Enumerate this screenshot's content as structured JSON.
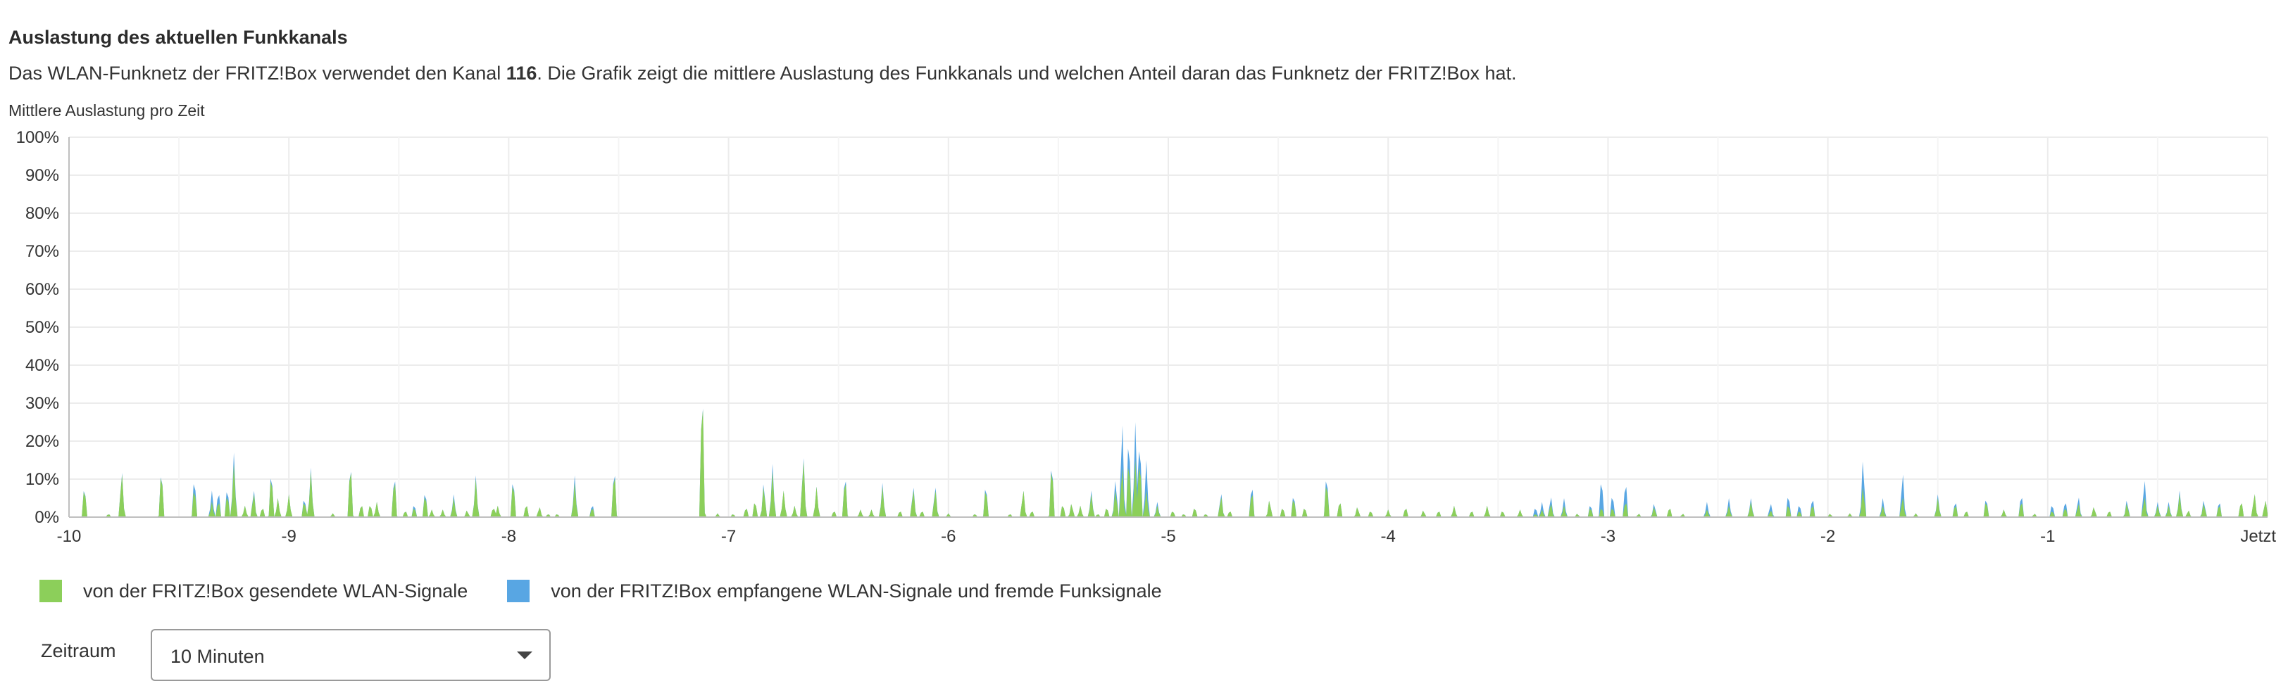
{
  "heading": "Auslastung des aktuellen Funkkanals",
  "description": {
    "before": "Das WLAN-Funknetz der FRITZ!Box verwendet den Kanal ",
    "channel": "116",
    "after": ". Die Grafik zeigt die mittlere Auslastung des Funkkanals und welchen Anteil daran das Funknetz der FRITZ!Box hat."
  },
  "legend": {
    "green_label": "von der FRITZ!Box gesendete WLAN-Signale",
    "blue_label": "von der FRITZ!Box empfangene WLAN-Signale und fremde Funksignale"
  },
  "colors": {
    "green": "#8ccf5a",
    "blue": "#58a6e3",
    "grid": "#ececec",
    "axis": "#bfbfbf"
  },
  "zeitraum": {
    "label": "Zeitraum",
    "value": "10 Minuten"
  },
  "chart_data": {
    "type": "area",
    "title": "Mittlere Auslastung pro Zeit",
    "xlim": [
      -10,
      0
    ],
    "ylim": [
      0,
      100
    ],
    "x_ticks": [
      {
        "value": -10,
        "label": "-10"
      },
      {
        "value": -9,
        "label": "-9"
      },
      {
        "value": -8,
        "label": "-8"
      },
      {
        "value": -7,
        "label": "-7"
      },
      {
        "value": -6,
        "label": "-6"
      },
      {
        "value": -5,
        "label": "-5"
      },
      {
        "value": -4,
        "label": "-4"
      },
      {
        "value": -3,
        "label": "-3"
      },
      {
        "value": -2,
        "label": "-2"
      },
      {
        "value": -1,
        "label": "-1"
      },
      {
        "value": 0,
        "label": "Jetzt"
      }
    ],
    "y_ticks": [
      {
        "value": 0,
        "label": "0%"
      },
      {
        "value": 10,
        "label": "10%"
      },
      {
        "value": 20,
        "label": "20%"
      },
      {
        "value": 30,
        "label": "30%"
      },
      {
        "value": 40,
        "label": "40%"
      },
      {
        "value": 50,
        "label": "50%"
      },
      {
        "value": 60,
        "label": "60%"
      },
      {
        "value": 70,
        "label": "70%"
      },
      {
        "value": 80,
        "label": "80%"
      },
      {
        "value": 90,
        "label": "90%"
      },
      {
        "value": 100,
        "label": "100%"
      }
    ],
    "grid": true,
    "stacked": true,
    "series": [
      {
        "name": "von der FRITZ!Box gesendete WLAN-Signale",
        "color": "#8ccf5a",
        "spikes": [
          [
            -9.93,
            9
          ],
          [
            -9.82,
            1
          ],
          [
            -9.76,
            13
          ],
          [
            -9.58,
            14
          ],
          [
            -9.43,
            9
          ],
          [
            -9.35,
            4
          ],
          [
            -9.32,
            5
          ],
          [
            -9.28,
            7
          ],
          [
            -9.25,
            14
          ],
          [
            -9.2,
            3
          ],
          [
            -9.16,
            7
          ],
          [
            -9.12,
            3
          ],
          [
            -9.08,
            13
          ],
          [
            -9.05,
            5
          ],
          [
            -9.0,
            6
          ],
          [
            -8.93,
            5
          ],
          [
            -8.92,
            1
          ],
          [
            -8.9,
            12
          ],
          [
            -8.8,
            1
          ],
          [
            -8.72,
            16
          ],
          [
            -8.67,
            4
          ],
          [
            -8.63,
            4
          ],
          [
            -8.6,
            4
          ],
          [
            -8.52,
            12
          ],
          [
            -8.47,
            2
          ],
          [
            -8.43,
            3
          ],
          [
            -8.38,
            7
          ],
          [
            -8.35,
            2
          ],
          [
            -8.3,
            2
          ],
          [
            -8.25,
            5
          ],
          [
            -8.19,
            2
          ],
          [
            -8.15,
            10
          ],
          [
            -8.07,
            3
          ],
          [
            -8.05,
            3
          ],
          [
            -7.98,
            11
          ],
          [
            -7.92,
            4
          ],
          [
            -7.86,
            3
          ],
          [
            -7.82,
            1
          ],
          [
            -7.78,
            1
          ],
          [
            -7.7,
            9
          ],
          [
            -7.62,
            3
          ],
          [
            -7.52,
            14
          ],
          [
            -7.12,
            39
          ],
          [
            -7.05,
            1
          ],
          [
            -6.98,
            1
          ],
          [
            -6.92,
            3
          ],
          [
            -6.88,
            5
          ],
          [
            -6.84,
            9
          ],
          [
            -6.8,
            12
          ],
          [
            -6.75,
            7
          ],
          [
            -6.7,
            3
          ],
          [
            -6.66,
            17
          ],
          [
            -6.6,
            8
          ],
          [
            -6.52,
            2
          ],
          [
            -6.47,
            12
          ],
          [
            -6.4,
            2
          ],
          [
            -6.35,
            2
          ],
          [
            -6.3,
            8
          ],
          [
            -6.22,
            2
          ],
          [
            -6.16,
            8
          ],
          [
            -6.12,
            2
          ],
          [
            -6.06,
            8
          ],
          [
            -6.0,
            1
          ],
          [
            -5.88,
            1
          ],
          [
            -5.83,
            9
          ],
          [
            -5.72,
            1
          ],
          [
            -5.66,
            8
          ],
          [
            -5.62,
            2
          ],
          [
            -5.53,
            16
          ],
          [
            -5.48,
            4
          ],
          [
            -5.44,
            4
          ],
          [
            -5.4,
            3
          ],
          [
            -5.35,
            6
          ],
          [
            -5.32,
            1
          ],
          [
            -5.28,
            3
          ],
          [
            -5.24,
            8
          ],
          [
            -5.21,
            15
          ],
          [
            -5.18,
            18
          ],
          [
            -5.15,
            15
          ],
          [
            -5.13,
            18
          ],
          [
            -5.1,
            7
          ],
          [
            -5.05,
            3
          ],
          [
            -4.98,
            2
          ],
          [
            -4.93,
            1
          ],
          [
            -4.88,
            3
          ],
          [
            -4.83,
            1
          ],
          [
            -4.76,
            6
          ],
          [
            -4.72,
            2
          ],
          [
            -4.62,
            8
          ],
          [
            -4.54,
            5
          ],
          [
            -4.48,
            3
          ],
          [
            -4.43,
            6
          ],
          [
            -4.38,
            3
          ],
          [
            -4.28,
            11
          ],
          [
            -4.22,
            5
          ],
          [
            -4.14,
            3
          ],
          [
            -4.08,
            2
          ],
          [
            -4.0,
            2
          ],
          [
            -3.92,
            3
          ],
          [
            -3.84,
            2
          ],
          [
            -3.77,
            2
          ],
          [
            -3.7,
            3
          ],
          [
            -3.62,
            2
          ],
          [
            -3.55,
            3
          ],
          [
            -3.48,
            2
          ],
          [
            -3.4,
            2
          ],
          [
            -3.33,
            1
          ],
          [
            -3.3,
            2
          ],
          [
            -3.26,
            4
          ],
          [
            -3.2,
            3
          ],
          [
            -3.14,
            1
          ],
          [
            -3.08,
            3
          ],
          [
            -3.03,
            3
          ],
          [
            -2.98,
            3
          ],
          [
            -2.92,
            5
          ],
          [
            -2.86,
            1
          ],
          [
            -2.79,
            3
          ],
          [
            -2.72,
            3
          ],
          [
            -2.66,
            1
          ],
          [
            -2.55,
            2
          ],
          [
            -2.45,
            3
          ],
          [
            -2.35,
            4
          ],
          [
            -2.26,
            2
          ],
          [
            -2.18,
            4
          ],
          [
            -2.13,
            2
          ],
          [
            -2.07,
            4
          ],
          [
            -1.99,
            1
          ],
          [
            -1.9,
            1
          ],
          [
            -1.84,
            9
          ],
          [
            -1.75,
            3
          ],
          [
            -1.66,
            6
          ],
          [
            -1.6,
            1
          ],
          [
            -1.5,
            5
          ],
          [
            -1.42,
            4
          ],
          [
            -1.37,
            2
          ],
          [
            -1.28,
            5
          ],
          [
            -1.2,
            2
          ],
          [
            -1.12,
            5
          ],
          [
            -1.06,
            1
          ],
          [
            -0.98,
            2
          ],
          [
            -0.92,
            3
          ],
          [
            -0.86,
            4
          ],
          [
            -0.79,
            3
          ],
          [
            -0.72,
            2
          ],
          [
            -0.64,
            4
          ],
          [
            -0.56,
            6
          ],
          [
            -0.5,
            3
          ],
          [
            -0.45,
            3
          ],
          [
            -0.4,
            6
          ],
          [
            -0.36,
            2
          ],
          [
            -0.29,
            4
          ],
          [
            -0.22,
            4
          ],
          [
            -0.12,
            5
          ],
          [
            -0.06,
            7
          ],
          [
            -0.01,
            5
          ]
        ]
      },
      {
        "name": "von der FRITZ!Box empfangene WLAN-Signale und fremde Funksignale",
        "color": "#58a6e3",
        "spikes": [
          [
            -9.93,
            0.5
          ],
          [
            -9.76,
            0.5
          ],
          [
            -9.58,
            0.5
          ],
          [
            -9.43,
            3
          ],
          [
            -9.35,
            3
          ],
          [
            -9.32,
            3
          ],
          [
            -9.28,
            2
          ],
          [
            -9.25,
            3
          ],
          [
            -9.16,
            1
          ],
          [
            -9.08,
            1
          ],
          [
            -8.93,
            1
          ],
          [
            -8.9,
            1
          ],
          [
            -8.72,
            0.5
          ],
          [
            -8.52,
            1
          ],
          [
            -8.43,
            1
          ],
          [
            -8.38,
            1
          ],
          [
            -8.25,
            1
          ],
          [
            -8.15,
            1
          ],
          [
            -7.98,
            1
          ],
          [
            -7.7,
            2
          ],
          [
            -7.62,
            1
          ],
          [
            -7.52,
            1
          ],
          [
            -7.12,
            0.5
          ],
          [
            -6.84,
            1
          ],
          [
            -6.8,
            2
          ],
          [
            -6.66,
            1
          ],
          [
            -6.47,
            1
          ],
          [
            -6.3,
            1
          ],
          [
            -6.16,
            1
          ],
          [
            -6.06,
            1
          ],
          [
            -5.83,
            1
          ],
          [
            -5.53,
            1
          ],
          [
            -5.35,
            1
          ],
          [
            -5.24,
            3
          ],
          [
            -5.21,
            13
          ],
          [
            -5.18,
            7
          ],
          [
            -5.15,
            10
          ],
          [
            -5.13,
            6
          ],
          [
            -5.1,
            8
          ],
          [
            -5.05,
            1
          ],
          [
            -4.76,
            1
          ],
          [
            -4.62,
            2
          ],
          [
            -4.43,
            1
          ],
          [
            -4.28,
            2
          ],
          [
            -3.33,
            2
          ],
          [
            -3.3,
            2
          ],
          [
            -3.26,
            2
          ],
          [
            -3.2,
            2
          ],
          [
            -3.08,
            1
          ],
          [
            -3.03,
            9
          ],
          [
            -2.98,
            4
          ],
          [
            -2.92,
            6
          ],
          [
            -2.79,
            1
          ],
          [
            -2.55,
            2
          ],
          [
            -2.45,
            2
          ],
          [
            -2.35,
            1
          ],
          [
            -2.26,
            2
          ],
          [
            -2.18,
            3
          ],
          [
            -2.13,
            2
          ],
          [
            -2.07,
            2
          ],
          [
            -1.84,
            8
          ],
          [
            -1.75,
            2
          ],
          [
            -1.66,
            7
          ],
          [
            -1.5,
            1
          ],
          [
            -1.42,
            1
          ],
          [
            -1.28,
            1
          ],
          [
            -1.12,
            2
          ],
          [
            -0.98,
            2
          ],
          [
            -0.92,
            2
          ],
          [
            -0.86,
            2
          ],
          [
            -0.64,
            1
          ],
          [
            -0.56,
            5
          ],
          [
            -0.5,
            1
          ],
          [
            -0.45,
            1
          ],
          [
            -0.4,
            1
          ],
          [
            -0.29,
            1
          ],
          [
            -0.22,
            1
          ]
        ]
      }
    ]
  }
}
